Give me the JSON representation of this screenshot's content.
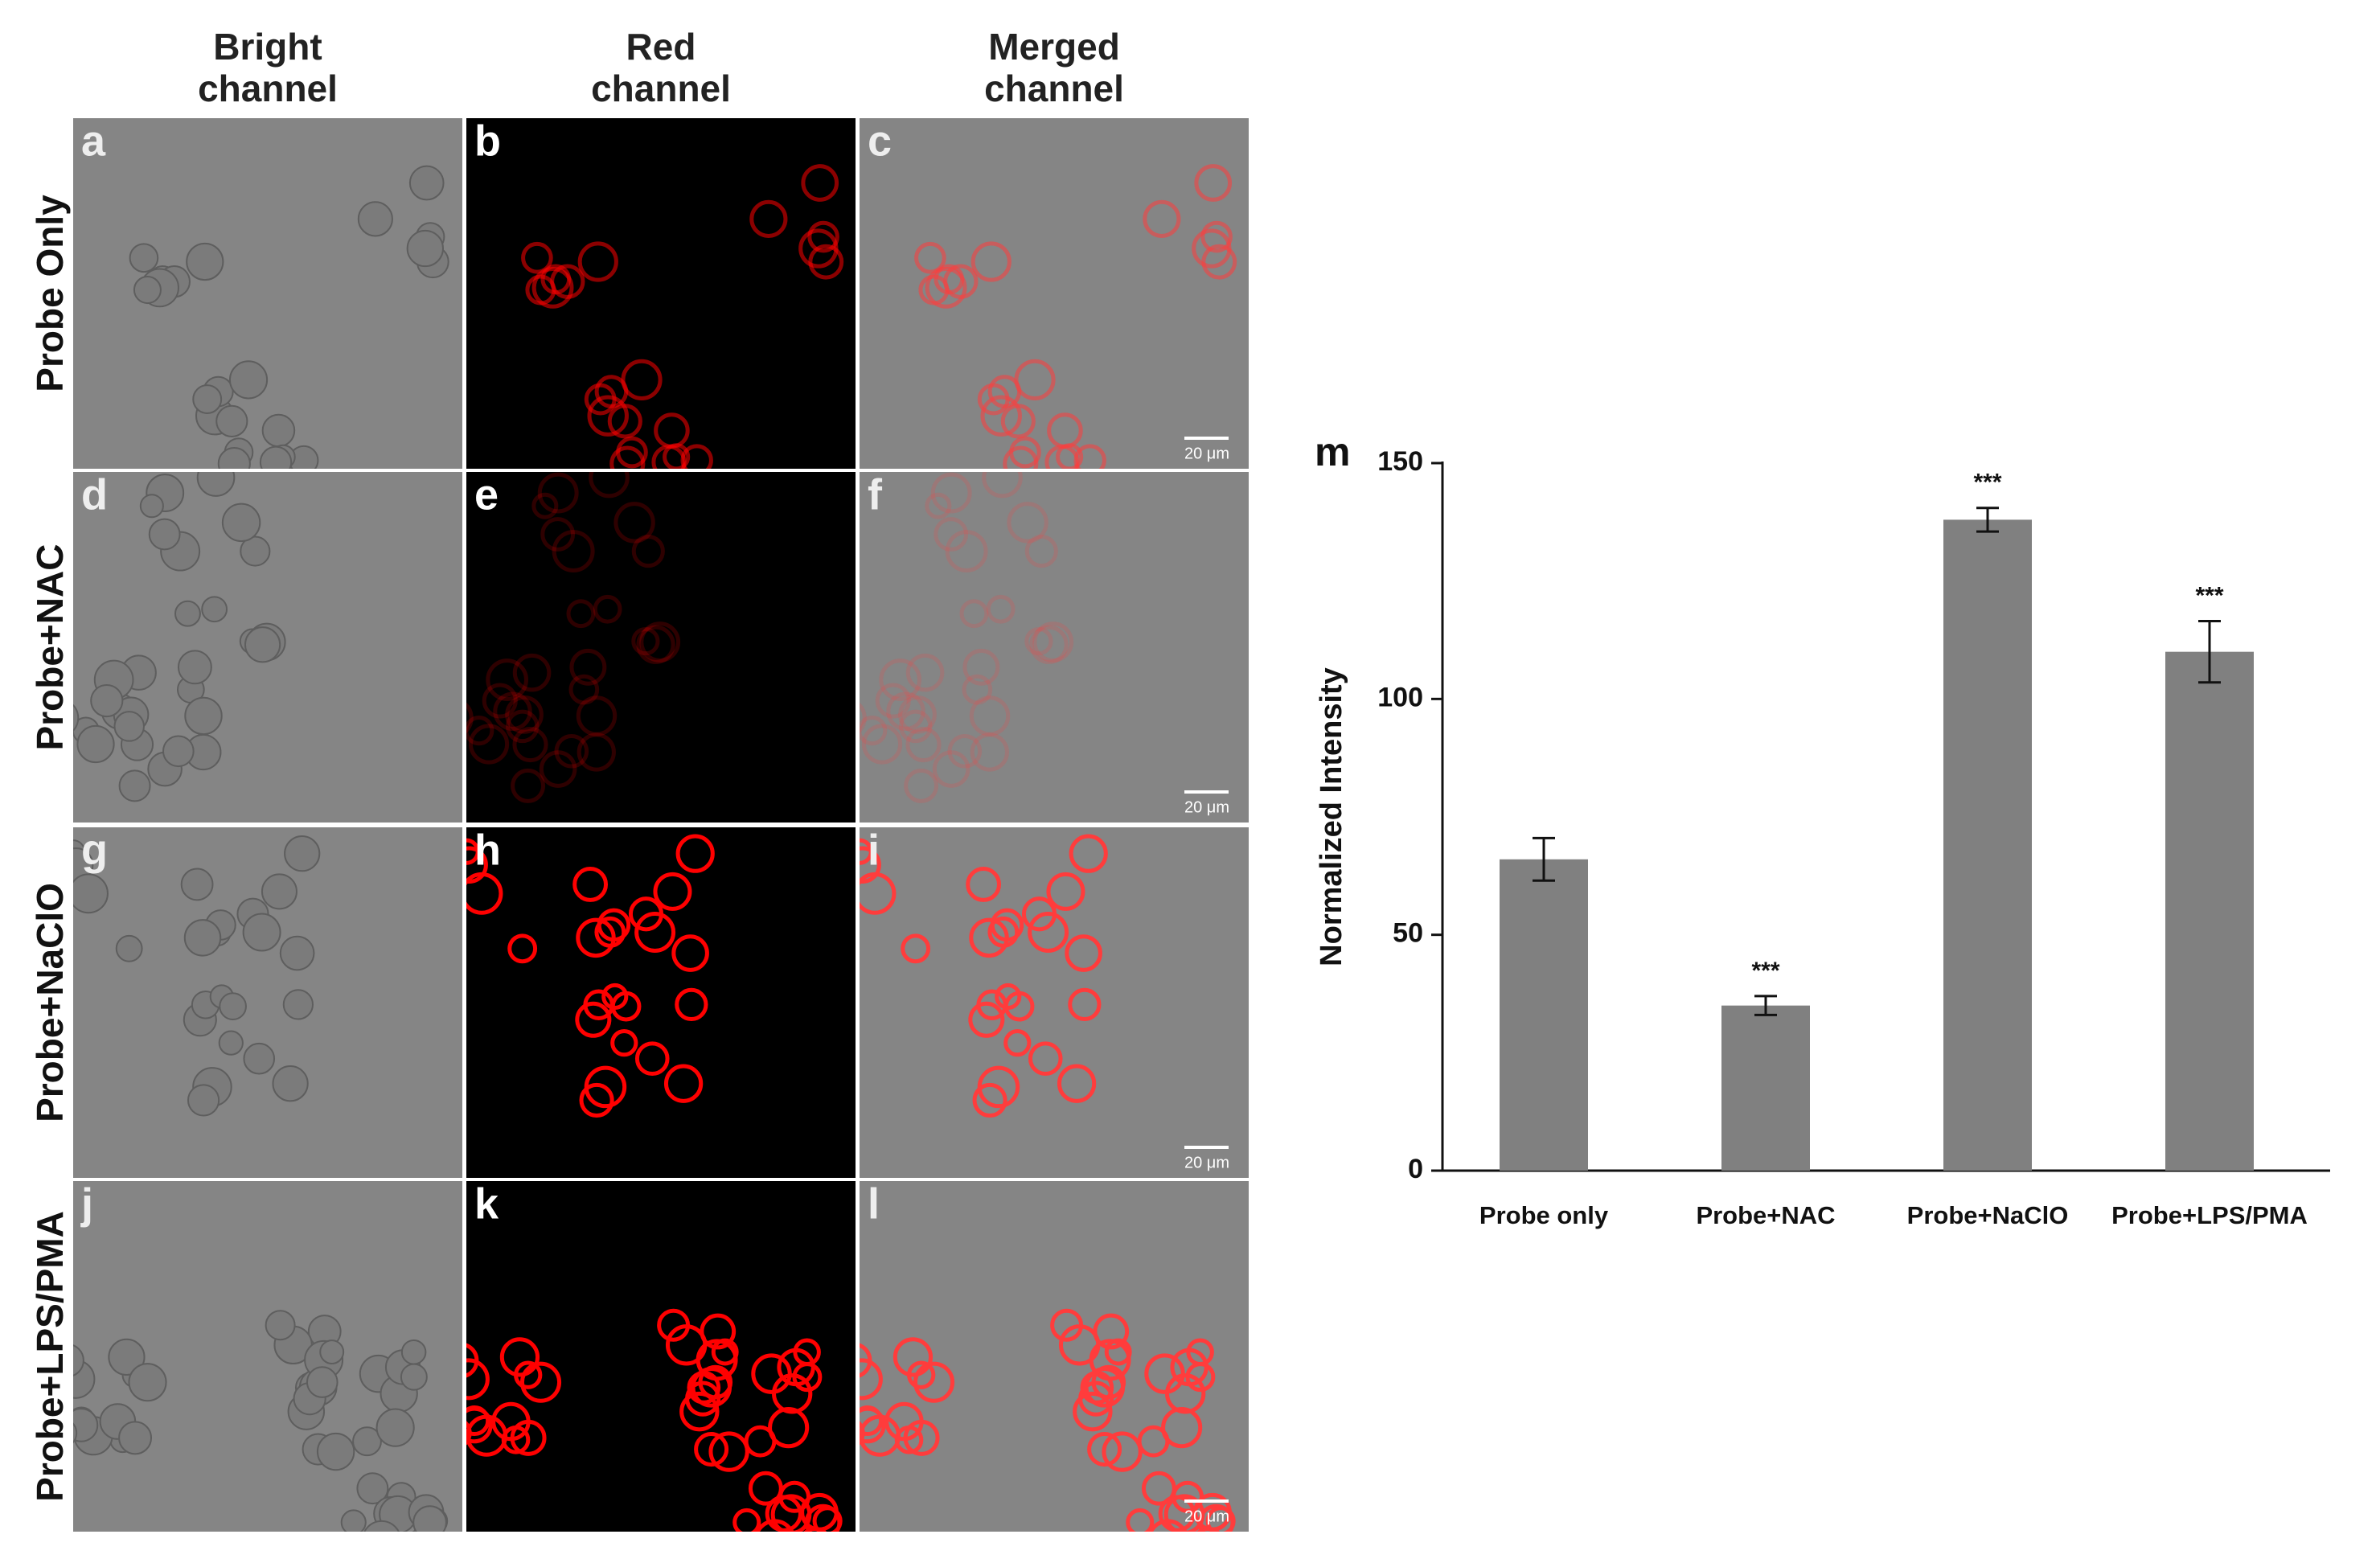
{
  "figure": {
    "columns": [
      [
        "Bright",
        "channel"
      ],
      [
        "Red",
        "channel"
      ],
      [
        "Merged",
        "channel"
      ]
    ],
    "rows": [
      "Probe Only",
      "Probe+NAC",
      "Probe+NaClO",
      "Probe+LPS/PMA"
    ],
    "panels": [
      {
        "label": "a"
      },
      {
        "label": "b"
      },
      {
        "label": "c",
        "scale_bar": "20 μm"
      },
      {
        "label": "d"
      },
      {
        "label": "e"
      },
      {
        "label": "f",
        "scale_bar": "20 μm"
      },
      {
        "label": "g"
      },
      {
        "label": "h"
      },
      {
        "label": "i",
        "scale_bar": "20 μm"
      },
      {
        "label": "j"
      },
      {
        "label": "k"
      },
      {
        "label": "l",
        "scale_bar": "20 μm"
      }
    ]
  },
  "chart_data": {
    "type": "bar",
    "panel_label": "m",
    "ylabel": "Normalized Intensity",
    "categories": [
      "Probe only",
      "Probe+NAC",
      "Probe+NaClO",
      "Probe+LPS/PMA"
    ],
    "values": [
      66,
      35,
      138,
      110
    ],
    "errors": [
      4.5,
      2,
      2.5,
      6.5
    ],
    "significance": [
      null,
      "***",
      "***",
      "***"
    ],
    "color": "#808080",
    "ylim": [
      0,
      150
    ],
    "yticks": [
      0,
      50,
      100,
      150
    ]
  }
}
